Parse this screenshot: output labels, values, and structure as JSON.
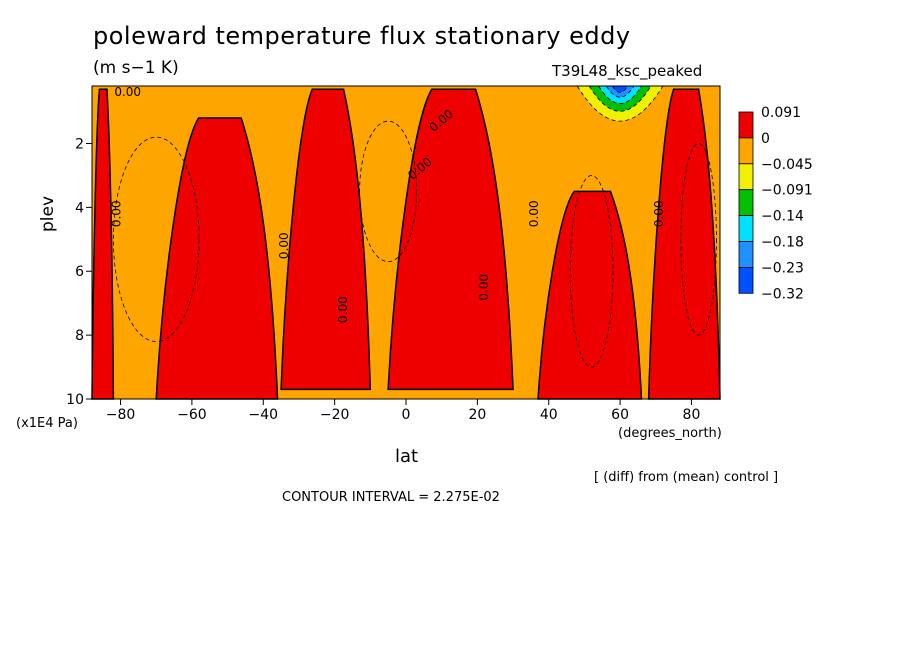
{
  "chart_data": {
    "type": "heatmap",
    "title": "poleward temperature flux stationary eddy",
    "units": "(m s−1 K)",
    "case_label": "T39L48_ksc_peaked",
    "xlabel": "lat",
    "xunit": "(degrees_north)",
    "ylabel": "plev",
    "yunit": "(x1E4 Pa)",
    "xlim": [
      -88,
      88
    ],
    "ylim": [
      10,
      0.2
    ],
    "x_ticks": [
      -80,
      -60,
      -40,
      -20,
      0,
      20,
      40,
      60,
      80
    ],
    "y_ticks": [
      2,
      4,
      6,
      8,
      10
    ],
    "legend_levels": [
      "0.091",
      "0",
      "−0.045",
      "−0.091",
      "−0.14",
      "−0.18",
      "−0.23",
      "−0.32"
    ],
    "legend_colors": [
      "#ee0000",
      "#ffa500",
      "#f0f000",
      "#00c000",
      "#00e0ff",
      "#1e90ff",
      "#0050ff"
    ],
    "contour_labels": [
      "0.00"
    ],
    "footer": "[ (diff) from (mean) control ]",
    "contour_interval": "CONTOUR INTERVAL = 2.275E-02",
    "red_bands": [
      {
        "lat": [
          -88,
          -82
        ],
        "plev": [
          0.3,
          10
        ]
      },
      {
        "lat": [
          -70,
          -36
        ],
        "plev": [
          1.2,
          10
        ]
      },
      {
        "lat": [
          -35,
          -10
        ],
        "plev": [
          0.3,
          9.7
        ]
      },
      {
        "lat": [
          -5,
          30
        ],
        "plev": [
          0.3,
          9.7
        ]
      },
      {
        "lat": [
          37,
          66
        ],
        "plev": [
          3.5,
          10
        ]
      },
      {
        "lat": [
          68,
          88
        ],
        "plev": [
          0.3,
          10
        ]
      }
    ],
    "minimum_region": {
      "lat": [
        48,
        72
      ],
      "plev": [
        0.2,
        1.3
      ],
      "min": -0.32
    }
  }
}
